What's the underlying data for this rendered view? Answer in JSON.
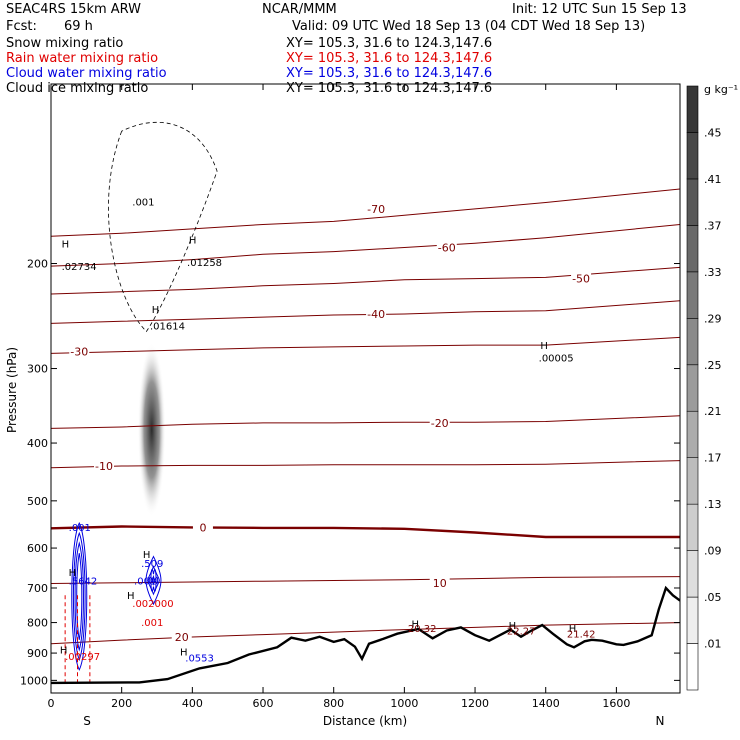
{
  "header": {
    "model": "SEAC4RS 15km ARW",
    "center": "NCAR/MMM",
    "init": "Init: 12 UTC Sun 15 Sep 13",
    "fcst_label": "Fcst:",
    "fcst_value": "69 h",
    "valid": "Valid: 09 UTC Wed 18 Sep 13 (04 CDT Wed 18 Sep 13)"
  },
  "fields": [
    {
      "name": "Snow mixing ratio",
      "xy": "XY= 105.3, 31.6 to 124.3,147.6",
      "color": "#000000"
    },
    {
      "name": "Rain water mixing ratio",
      "xy": "XY= 105.3, 31.6 to 124.3,147.6",
      "color": "#e00000"
    },
    {
      "name": "Cloud water mixing ratio",
      "xy": "XY= 105.3, 31.6 to 124.3,147.6",
      "color": "#0000e0"
    },
    {
      "name": "Cloud ice mixing ratio",
      "xy": "XY= 105.3, 31.6 to 124.3,147.6",
      "color": "#000000"
    }
  ],
  "chart_data": {
    "type": "cross-section",
    "xlabel": "Distance (km)",
    "ylabel": "Pressure (hPa)",
    "xlim": [
      0,
      1780
    ],
    "ylim": [
      1050,
      100
    ],
    "y_scale": "log",
    "x_ticks": [
      0,
      200,
      400,
      600,
      800,
      1000,
      1200,
      1400,
      1600
    ],
    "y_ticks": [
      200,
      300,
      400,
      500,
      600,
      700,
      800,
      900,
      1000
    ],
    "endpoint_labels": {
      "left": "S",
      "right": "N"
    },
    "colorbar": {
      "unit": "g kg⁻¹",
      "ticks": [
        ".01",
        ".05",
        ".09",
        ".13",
        ".17",
        ".21",
        ".25",
        ".29",
        ".33",
        ".37",
        ".41",
        ".45"
      ]
    },
    "temperature_contours": [
      {
        "value": "-70",
        "pressure": [
          180,
          178,
          175,
          172,
          170,
          166,
          162,
          158,
          150
        ],
        "color": "#7a0000",
        "label_x": 920,
        "label_p": 162
      },
      {
        "value": "-60",
        "pressure": [
          202,
          200,
          197,
          193,
          191,
          188,
          185,
          181,
          172
        ],
        "color": "#7a0000",
        "label_x": 1120,
        "label_p": 188
      },
      {
        "value": "-50",
        "pressure": [
          225,
          223,
          221,
          218,
          216,
          213,
          212,
          211,
          203
        ],
        "color": "#7a0000",
        "label_x": 1500,
        "label_p": 212
      },
      {
        "value": "-40",
        "pressure": [
          252,
          250,
          248,
          246,
          244,
          243,
          241,
          240,
          231
        ],
        "color": "#7a0000",
        "label_x": 920,
        "label_p": 243
      },
      {
        "value": "-30",
        "pressure": [
          283,
          281,
          279,
          277,
          276,
          275,
          274,
          274,
          266
        ],
        "color": "#7a0000",
        "label_x": 80,
        "label_p": 281
      },
      {
        "value": "-20",
        "pressure": [
          378,
          376,
          372,
          370,
          370,
          369,
          369,
          368,
          360
        ],
        "color": "#7a0000",
        "label_x": 1100,
        "label_p": 370
      },
      {
        "value": "-10",
        "pressure": [
          440,
          437,
          436,
          436,
          435,
          435,
          435,
          434,
          428
        ],
        "color": "#7a0000",
        "label_x": 150,
        "label_p": 437
      },
      {
        "value": "0",
        "pressure": [
          556,
          552,
          554,
          555,
          555,
          557,
          565,
          575,
          575
        ],
        "color": "#7a0000",
        "label_x": 430,
        "label_p": 554
      },
      {
        "value": "10",
        "pressure": [
          688,
          686,
          684,
          682,
          680,
          678,
          675,
          672,
          670
        ],
        "color": "#7a0000",
        "label_x": 1100,
        "label_p": 686
      },
      {
        "value": "20",
        "pressure": [
          868,
          856,
          846,
          838,
          830,
          822,
          815,
          808,
          800
        ],
        "color": "#7a0000",
        "label_x": 370,
        "label_p": 846
      }
    ],
    "contour_x": [
      0,
      200,
      400,
      600,
      800,
      1000,
      1200,
      1400,
      1780
    ],
    "terrain": {
      "x": [
        0,
        250,
        330,
        420,
        500,
        560,
        640,
        680,
        720,
        760,
        800,
        830,
        860,
        880,
        900,
        940,
        980,
        1040,
        1080,
        1120,
        1160,
        1200,
        1240,
        1270,
        1300,
        1330,
        1360,
        1390,
        1420,
        1460,
        1480,
        1510,
        1530,
        1560,
        1600,
        1620,
        1660,
        1700,
        1720,
        1740,
        1760,
        1780
      ],
      "pressure": [
        1010,
        1008,
        995,
        955,
        935,
        905,
        880,
        848,
        858,
        845,
        862,
        853,
        878,
        920,
        868,
        852,
        835,
        820,
        850,
        825,
        815,
        840,
        858,
        840,
        822,
        845,
        825,
        808,
        835,
        870,
        880,
        860,
        855,
        858,
        870,
        872,
        860,
        840,
        760,
        700,
        720,
        735
      ]
    },
    "snow_max": {
      "x": 285,
      "center_p": 380,
      "top_p": 250,
      "bottom_p": 490
    },
    "max_labels": [
      {
        "x": 30,
        "p": 205,
        "text": ".02734",
        "color": "#000000"
      },
      {
        "x": 280,
        "p": 258,
        "text": ".01614",
        "color": "#000000"
      },
      {
        "x": 385,
        "p": 202,
        "text": ".01258",
        "color": "#000000"
      },
      {
        "x": 1380,
        "p": 292,
        "text": ".00005",
        "color": "#000000"
      },
      {
        "x": 230,
        "p": 160,
        "text": ".001",
        "color": "#000000"
      },
      {
        "x": 50,
        "p": 562,
        "text": ".001",
        "color": "#0000e0"
      },
      {
        "x": 50,
        "p": 690,
        "text": ".5642",
        "color": "#0000e0"
      },
      {
        "x": 255,
        "p": 645,
        "text": ".509",
        "color": "#0000e0"
      },
      {
        "x": 235,
        "p": 690,
        "text": ".001",
        "color": "#0000e0"
      },
      {
        "x": 380,
        "p": 930,
        "text": ".0553",
        "color": "#0000e0"
      },
      {
        "x": 40,
        "p": 925,
        "text": ".00297",
        "color": "#e00000"
      },
      {
        "x": 230,
        "p": 753,
        "text": ".002000",
        "color": "#e00000"
      },
      {
        "x": 255,
        "p": 810,
        "text": ".001",
        "color": "#e00000"
      },
      {
        "x": 1010,
        "p": 830,
        "text": "20.32",
        "color": "#7a0000"
      },
      {
        "x": 1290,
        "p": 838,
        "text": "22.27",
        "color": "#7a0000"
      },
      {
        "x": 1460,
        "p": 848,
        "text": "21.42",
        "color": "#7a0000"
      }
    ],
    "h_markers": [
      {
        "x": 30,
        "p": 188
      },
      {
        "x": 285,
        "p": 242
      },
      {
        "x": 390,
        "p": 185
      },
      {
        "x": 1385,
        "p": 278
      },
      {
        "x": 50,
        "p": 668
      },
      {
        "x": 260,
        "p": 624
      },
      {
        "x": 365,
        "p": 908
      },
      {
        "x": 215,
        "p": 730
      },
      {
        "x": 25,
        "p": 902
      },
      {
        "x": 1020,
        "p": 815
      },
      {
        "x": 1295,
        "p": 820
      },
      {
        "x": 1465,
        "p": 830
      }
    ],
    "cloud_water_regions": [
      {
        "x": 80,
        "top_p": 545,
        "bottom_p": 960
      },
      {
        "x": 290,
        "top_p": 620,
        "bottom_p": 745
      }
    ],
    "rain_region": {
      "x_left": 40,
      "x_right": 110,
      "top_p": 720,
      "bottom_p": 1015
    }
  }
}
